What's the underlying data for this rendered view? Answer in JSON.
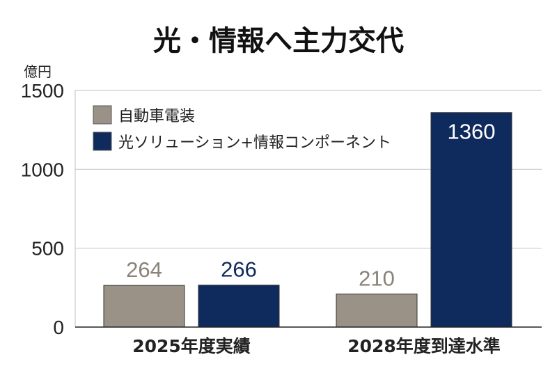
{
  "chart_data": {
    "type": "bar",
    "title": "光・情報へ主力交代",
    "ylabel": "億円",
    "xlabel": "",
    "ylim": [
      0,
      1500
    ],
    "yticks": [
      0,
      500,
      1000,
      1500
    ],
    "categories": [
      "2025年度実績",
      "2028年度到達水準"
    ],
    "series": [
      {
        "name": "自動車電装",
        "values": [
          264,
          210
        ],
        "color": "#9b9287",
        "label_color": "#8a8278"
      },
      {
        "name": "光ソリューション+情報コンポーネント",
        "values": [
          266,
          1360
        ],
        "color": "#0f2a5c",
        "label_color": "#0f2a5c"
      }
    ],
    "grid": true,
    "legend_position": "top-left"
  }
}
